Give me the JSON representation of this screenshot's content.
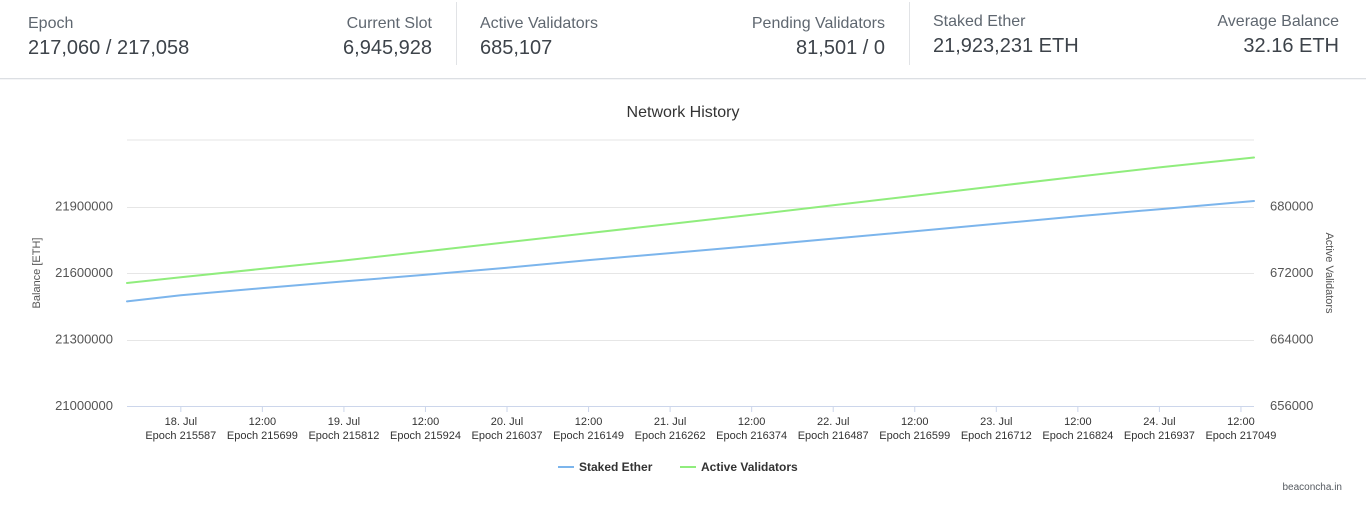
{
  "stats": [
    {
      "label": "Epoch",
      "value": "217,060 / 217,058"
    },
    {
      "label": "Current Slot",
      "value": "6,945,928"
    },
    {
      "label": "Active Validators",
      "value": "685,107"
    },
    {
      "label": "Pending Validators",
      "value": "81,501 / 0"
    },
    {
      "label": "Staked Ether",
      "value": "21,923,231 ETH"
    },
    {
      "label": "Average Balance",
      "value": "32.16 ETH"
    }
  ],
  "credit": "beaconcha.in",
  "chart_data": {
    "type": "line",
    "title": "Network History",
    "y_left_label": "Balance [ETH]",
    "y_right_label": "Active Validators",
    "y_left_range": [
      21000000,
      22200000
    ],
    "y_right_range": [
      656000,
      688000
    ],
    "y_left_ticks": [
      "21000000",
      "21300000",
      "21600000",
      "21900000"
    ],
    "y_right_ticks": [
      "656000",
      "664000",
      "672000",
      "680000"
    ],
    "x_range_days": [
      17.67,
      24.58
    ],
    "x_ticks": [
      {
        "date": "18. Jul",
        "epoch": "Epoch 215587",
        "day": 18.0
      },
      {
        "date": "12:00",
        "epoch": "Epoch 215699",
        "day": 18.5
      },
      {
        "date": "19. Jul",
        "epoch": "Epoch 215812",
        "day": 19.0
      },
      {
        "date": "12:00",
        "epoch": "Epoch 215924",
        "day": 19.5
      },
      {
        "date": "20. Jul",
        "epoch": "Epoch 216037",
        "day": 20.0
      },
      {
        "date": "12:00",
        "epoch": "Epoch 216149",
        "day": 20.5
      },
      {
        "date": "21. Jul",
        "epoch": "Epoch 216262",
        "day": 21.0
      },
      {
        "date": "12:00",
        "epoch": "Epoch 216374",
        "day": 21.5
      },
      {
        "date": "22. Jul",
        "epoch": "Epoch 216487",
        "day": 22.0
      },
      {
        "date": "12:00",
        "epoch": "Epoch 216599",
        "day": 22.5
      },
      {
        "date": "23. Jul",
        "epoch": "Epoch 216712",
        "day": 23.0
      },
      {
        "date": "12:00",
        "epoch": "Epoch 216824",
        "day": 23.5
      },
      {
        "date": "24. Jul",
        "epoch": "Epoch 216937",
        "day": 24.0
      },
      {
        "date": "12:00",
        "epoch": "Epoch 217049",
        "day": 24.5
      }
    ],
    "series": [
      {
        "name": "Staked Ether",
        "axis": "left",
        "color": "#7cb5ec",
        "x": [
          17.67,
          18.0,
          18.5,
          19.0,
          19.5,
          20.0,
          20.5,
          21.0,
          21.5,
          22.0,
          22.5,
          23.0,
          23.5,
          24.0,
          24.58
        ],
        "y": [
          21472000,
          21500000,
          21532000,
          21562000,
          21592000,
          21624000,
          21658000,
          21690000,
          21722000,
          21755000,
          21788000,
          21822000,
          21856000,
          21888000,
          21925000
        ]
      },
      {
        "name": "Active Validators",
        "axis": "right",
        "color": "#90ed7d",
        "x": [
          17.67,
          18.0,
          18.5,
          19.0,
          19.5,
          20.0,
          20.5,
          21.0,
          21.5,
          22.0,
          22.5,
          23.0,
          23.5,
          24.0,
          24.58
        ],
        "y": [
          670800,
          671500,
          672500,
          673500,
          674600,
          675700,
          676800,
          677900,
          679000,
          680150,
          681300,
          682450,
          683600,
          684700,
          685900
        ]
      }
    ],
    "legend_position": "bottom-center",
    "grid": true
  }
}
